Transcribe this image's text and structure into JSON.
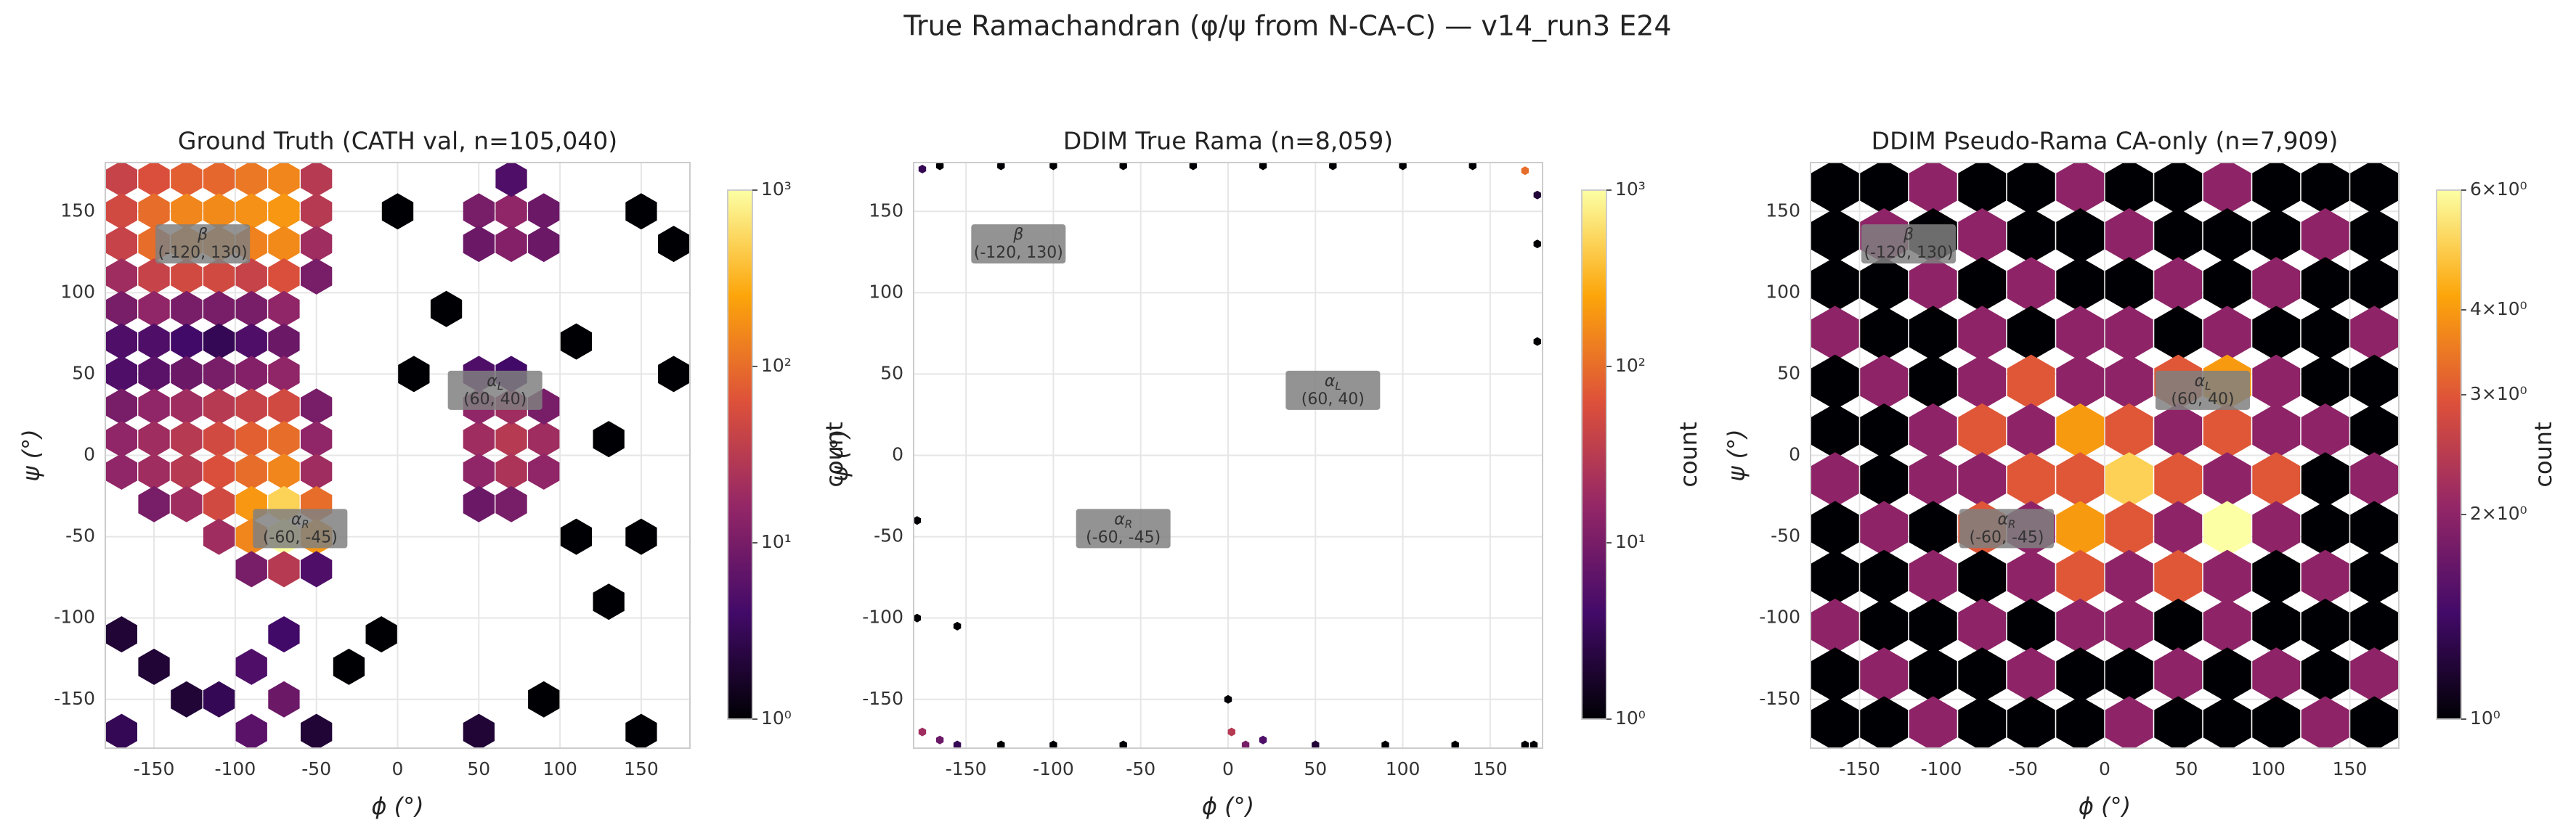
{
  "title": "True Ramachandran (φ/ψ from N-CA-C) — v14_run3 E24",
  "colormap": [
    "#000004",
    "#420a68",
    "#932667",
    "#dd513a",
    "#fca50a",
    "#fcffa4"
  ],
  "chart_data": [
    {
      "type": "hexbin",
      "title": "Ground Truth (CATH val, n=105,040)",
      "xlabel": "ϕ (°)",
      "ylabel": "ψ (°)",
      "xlim": [
        -180,
        180
      ],
      "ylim": [
        -180,
        180
      ],
      "xticks": [
        -150,
        -100,
        -50,
        0,
        50,
        100,
        150
      ],
      "yticks": [
        -150,
        -100,
        -50,
        0,
        50,
        100,
        150
      ],
      "grid": true,
      "clim": [
        1,
        1000
      ],
      "log_color": true,
      "colorbar_label": "count",
      "cticks": [
        {
          "value": 1,
          "label": "10⁰"
        },
        {
          "value": 10,
          "label": "10¹"
        },
        {
          "value": 100,
          "label": "10²"
        },
        {
          "value": 1000,
          "label": "10³"
        }
      ],
      "x": [
        -170,
        -150,
        -130,
        -110,
        -90,
        -70,
        -50,
        -170,
        -150,
        -130,
        -110,
        -90,
        -70,
        -50,
        -170,
        -150,
        -130,
        -110,
        -90,
        -70,
        -50,
        -170,
        -150,
        -130,
        -110,
        -90,
        -70,
        -50,
        -170,
        -150,
        -130,
        -110,
        -90,
        -70,
        -170,
        -150,
        -130,
        -110,
        -90,
        -70,
        -170,
        -150,
        -130,
        -110,
        -90,
        -70,
        -170,
        -150,
        -130,
        -110,
        -90,
        -70,
        -50,
        -170,
        -150,
        -130,
        -110,
        -90,
        -70,
        -50,
        -170,
        -150,
        -130,
        -110,
        -90,
        -70,
        -50,
        -150,
        -130,
        -110,
        -90,
        -70,
        -50,
        -110,
        -90,
        -70,
        -50,
        -90,
        -70,
        -50,
        -170,
        -150,
        -130,
        -170,
        -90,
        -70,
        -90,
        -70,
        -110,
        -50,
        50,
        70,
        90,
        50,
        70,
        90,
        50,
        70,
        50,
        70,
        90,
        50,
        70,
        50,
        70,
        90,
        50,
        70,
        90,
        70,
        10,
        110,
        130,
        150,
        170,
        130,
        150,
        90,
        50,
        -10,
        0,
        30,
        110,
        170,
        -30,
        150
      ],
      "y": [
        170,
        170,
        170,
        170,
        170,
        170,
        170,
        150,
        150,
        150,
        150,
        150,
        150,
        150,
        130,
        130,
        130,
        130,
        130,
        130,
        130,
        110,
        110,
        110,
        110,
        110,
        110,
        110,
        90,
        90,
        90,
        90,
        90,
        90,
        70,
        70,
        70,
        70,
        70,
        70,
        50,
        50,
        50,
        50,
        50,
        50,
        30,
        30,
        30,
        30,
        30,
        30,
        30,
        10,
        10,
        10,
        10,
        10,
        10,
        10,
        -10,
        -10,
        -10,
        -10,
        -10,
        -10,
        -10,
        -30,
        -30,
        -30,
        -30,
        -30,
        -30,
        -50,
        -50,
        -50,
        -50,
        -70,
        -70,
        -70,
        -110,
        -130,
        -150,
        -170,
        -130,
        -150,
        -170,
        -110,
        -150,
        -170,
        10,
        10,
        10,
        -10,
        -10,
        -10,
        -30,
        -30,
        30,
        30,
        30,
        50,
        50,
        150,
        150,
        150,
        130,
        130,
        130,
        170,
        50,
        70,
        10,
        150,
        130,
        -90,
        -170,
        -150,
        -170,
        -110,
        150,
        90,
        -50,
        50,
        -130,
        -50
      ],
      "values": [
        40,
        60,
        80,
        90,
        120,
        150,
        30,
        50,
        100,
        150,
        160,
        180,
        200,
        30,
        40,
        100,
        150,
        150,
        140,
        160,
        20,
        20,
        40,
        50,
        50,
        40,
        60,
        10,
        10,
        15,
        10,
        10,
        10,
        15,
        5,
        5,
        4,
        3,
        5,
        8,
        5,
        6,
        8,
        10,
        12,
        15,
        10,
        15,
        20,
        30,
        40,
        50,
        10,
        15,
        20,
        30,
        50,
        80,
        100,
        15,
        15,
        20,
        30,
        60,
        100,
        150,
        20,
        10,
        20,
        50,
        200,
        500,
        100,
        20,
        150,
        1000,
        200,
        10,
        30,
        5,
        2,
        2,
        2,
        3,
        5,
        8,
        6,
        4,
        3,
        2,
        20,
        30,
        20,
        15,
        25,
        15,
        8,
        10,
        15,
        20,
        10,
        5,
        4,
        10,
        15,
        8,
        8,
        12,
        8,
        5,
        1,
        1,
        1,
        1,
        1,
        1,
        1,
        1,
        2,
        1,
        1,
        1,
        1,
        1,
        1,
        1
      ],
      "annotations": [
        {
          "label": "β",
          "coords": "(-120, 130)",
          "x": -120,
          "y": 130,
          "color": "#32cd32"
        },
        {
          "label": "α",
          "subscript": "R",
          "coords": "(-60, -45)",
          "x": -60,
          "y": -45,
          "color": "#00e5ee"
        },
        {
          "label": "α",
          "subscript": "L",
          "coords": "(60, 40)",
          "x": 60,
          "y": 40,
          "color": "#ffa500"
        }
      ]
    },
    {
      "type": "hexbin",
      "title": "DDIM True Rama (n=8,059)",
      "xlabel": "ϕ (°)",
      "ylabel": "ψ (°)",
      "xlim": [
        -180,
        180
      ],
      "ylim": [
        -180,
        180
      ],
      "xticks": [
        -150,
        -100,
        -50,
        0,
        50,
        100,
        150
      ],
      "yticks": [
        -150,
        -100,
        -50,
        0,
        50,
        100,
        150
      ],
      "grid": true,
      "clim": [
        1,
        1000
      ],
      "log_color": true,
      "colorbar_label": "count",
      "cticks": [
        {
          "value": 1,
          "label": "10⁰"
        },
        {
          "value": 10,
          "label": "10¹"
        },
        {
          "value": 100,
          "label": "10²"
        },
        {
          "value": 1000,
          "label": "10³"
        }
      ],
      "x": [
        -175,
        -165,
        -130,
        -100,
        -60,
        -20,
        20,
        60,
        100,
        140,
        170,
        177,
        177,
        177,
        -178,
        -178,
        -155,
        -175,
        -165,
        -155,
        -130,
        -100,
        -60,
        0,
        2,
        10,
        20,
        50,
        90,
        130,
        170,
        175
      ],
      "y": [
        176,
        178,
        178,
        178,
        178,
        178,
        178,
        178,
        178,
        178,
        175,
        160,
        130,
        70,
        -40,
        -100,
        -105,
        -170,
        -175,
        -178,
        -178,
        -178,
        -178,
        -150,
        -170,
        -178,
        -175,
        -178,
        -178,
        -178,
        -178,
        -178
      ],
      "values": [
        3,
        1,
        1,
        1,
        1,
        1,
        1,
        1,
        1,
        1,
        100,
        2,
        1,
        1,
        1,
        1,
        1,
        20,
        8,
        3,
        1,
        1,
        1,
        1,
        30,
        10,
        5,
        2,
        1,
        1,
        1,
        1
      ],
      "annotations": [
        {
          "label": "β",
          "coords": "(-120, 130)",
          "x": -120,
          "y": 130,
          "color": "#32cd32"
        },
        {
          "label": "α",
          "subscript": "R",
          "coords": "(-60, -45)",
          "x": -60,
          "y": -45,
          "color": "#00e5ee"
        },
        {
          "label": "α",
          "subscript": "L",
          "coords": "(60, 40)",
          "x": 60,
          "y": 40,
          "color": "#ffa500"
        }
      ]
    },
    {
      "type": "hexbin",
      "title": "DDIM Pseudo-Rama CA-only (n=7,909)",
      "xlabel": "ϕ (°)",
      "ylabel": "ψ (°)",
      "xlim": [
        -180,
        180
      ],
      "ylim": [
        -180,
        180
      ],
      "xticks": [
        -150,
        -100,
        -50,
        0,
        50,
        100,
        150
      ],
      "yticks": [
        -150,
        -100,
        -50,
        0,
        50,
        100,
        150
      ],
      "grid": true,
      "clim": [
        1,
        6
      ],
      "log_color": true,
      "colorbar_label": "count",
      "cticks": [
        {
          "value": 1,
          "label": "10⁰"
        },
        {
          "value": 2,
          "label": "2×10⁰"
        },
        {
          "value": 3,
          "label": "3×10⁰"
        },
        {
          "value": 4,
          "label": "4×10⁰"
        },
        {
          "value": 6,
          "label": "6×10⁰"
        }
      ],
      "x": [
        -165,
        -135,
        -105,
        -75,
        -45,
        -15,
        15,
        45,
        75,
        105,
        135,
        165
      ],
      "y": [
        165,
        135,
        105,
        75,
        45,
        15,
        -15,
        -45,
        -75,
        -105,
        -135,
        -165
      ],
      "values": [
        [
          1,
          1,
          2,
          1,
          1,
          2,
          1,
          1,
          2,
          1,
          1,
          1
        ],
        [
          1,
          2,
          1,
          2,
          1,
          1,
          2,
          1,
          1,
          1,
          2,
          1
        ],
        [
          1,
          1,
          2,
          1,
          2,
          1,
          1,
          2,
          1,
          2,
          1,
          1
        ],
        [
          2,
          1,
          1,
          2,
          1,
          2,
          2,
          1,
          2,
          1,
          1,
          2
        ],
        [
          1,
          2,
          1,
          2,
          3,
          2,
          2,
          3,
          4,
          2,
          1,
          1
        ],
        [
          1,
          1,
          2,
          3,
          2,
          4,
          3,
          2,
          3,
          2,
          2,
          1
        ],
        [
          2,
          1,
          2,
          2,
          3,
          3,
          5,
          3,
          2,
          3,
          1,
          2
        ],
        [
          1,
          2,
          1,
          3,
          2,
          4,
          3,
          2,
          6,
          2,
          1,
          1
        ],
        [
          1,
          1,
          2,
          1,
          2,
          3,
          2,
          3,
          2,
          1,
          2,
          1
        ],
        [
          2,
          1,
          1,
          2,
          1,
          2,
          2,
          1,
          2,
          1,
          1,
          1
        ],
        [
          1,
          2,
          1,
          1,
          2,
          1,
          1,
          2,
          1,
          2,
          1,
          2
        ],
        [
          1,
          1,
          2,
          1,
          1,
          1,
          2,
          1,
          1,
          1,
          2,
          1
        ]
      ],
      "annotations": [
        {
          "label": "β",
          "coords": "(-120, 130)",
          "x": -120,
          "y": 130,
          "color": "#32cd32"
        },
        {
          "label": "α",
          "subscript": "R",
          "coords": "(-60, -45)",
          "x": -60,
          "y": -45,
          "color": "#00e5ee"
        },
        {
          "label": "α",
          "subscript": "L",
          "coords": "(60, 40)",
          "x": 60,
          "y": 40,
          "color": "#ffa500"
        }
      ]
    }
  ]
}
